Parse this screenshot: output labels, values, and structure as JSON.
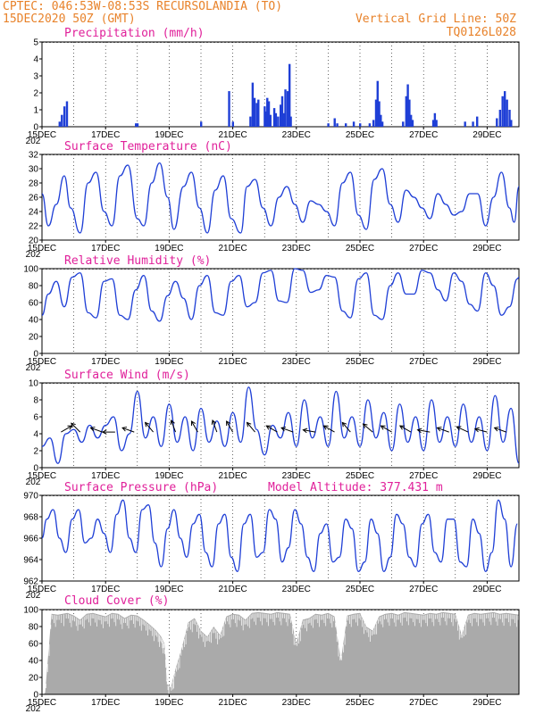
{
  "header": {
    "line1": "CPTEC:   046:53W-08:53S   RECURSOLANDIA (TO)",
    "line2": "15DEC2020 50Z (GMT)",
    "grid_note": "Vertical Grid Line: 50Z",
    "code": "TQ0126L028"
  },
  "colors": {
    "header": "#e8822a",
    "panel_title": "#e0209a",
    "series": "#1f3fd6",
    "cloud": "#aaaaaa"
  },
  "x_axis": {
    "labels": [
      "15DEC",
      "17DEC",
      "19DEC",
      "21DEC",
      "23DEC",
      "25DEC",
      "27DEC",
      "29DEC"
    ],
    "year_fragment": "202"
  },
  "chart_data": [
    {
      "type": "bar",
      "title": "Precipitation (mm/h)",
      "ylim": [
        0,
        5
      ],
      "yticks": [
        "0",
        "1",
        "2",
        "3",
        "4",
        "5"
      ],
      "x_range_days": [
        15,
        30
      ],
      "bars": [
        [
          15.55,
          0.3
        ],
        [
          15.62,
          0.7
        ],
        [
          15.7,
          1.2
        ],
        [
          15.78,
          1.5
        ],
        [
          17.95,
          0.2
        ],
        [
          18.0,
          0.2
        ],
        [
          20.0,
          0.3
        ],
        [
          20.88,
          2.1
        ],
        [
          21.0,
          0.3
        ],
        [
          21.55,
          0.6
        ],
        [
          21.62,
          2.6
        ],
        [
          21.68,
          1.7
        ],
        [
          21.75,
          1.4
        ],
        [
          21.8,
          1.6
        ],
        [
          22.0,
          1.2
        ],
        [
          22.05,
          0.9
        ],
        [
          22.08,
          1.7
        ],
        [
          22.13,
          1.5
        ],
        [
          22.18,
          0.7
        ],
        [
          22.3,
          1.1
        ],
        [
          22.35,
          0.8
        ],
        [
          22.42,
          0.6
        ],
        [
          22.5,
          1.3
        ],
        [
          22.55,
          1.8
        ],
        [
          22.6,
          0.8
        ],
        [
          22.65,
          2.2
        ],
        [
          22.72,
          2.1
        ],
        [
          22.78,
          3.7
        ],
        [
          22.82,
          0.6
        ],
        [
          24.0,
          0.2
        ],
        [
          24.2,
          0.5
        ],
        [
          24.28,
          0.2
        ],
        [
          24.55,
          0.2
        ],
        [
          24.8,
          0.3
        ],
        [
          25.0,
          0.2
        ],
        [
          25.3,
          0.2
        ],
        [
          25.42,
          0.4
        ],
        [
          25.5,
          1.6
        ],
        [
          25.55,
          2.7
        ],
        [
          25.6,
          1.5
        ],
        [
          25.65,
          0.7
        ],
        [
          25.7,
          0.3
        ],
        [
          26.35,
          0.3
        ],
        [
          26.45,
          1.8
        ],
        [
          26.5,
          2.5
        ],
        [
          26.55,
          1.6
        ],
        [
          26.6,
          0.7
        ],
        [
          26.65,
          0.4
        ],
        [
          27.3,
          0.4
        ],
        [
          27.35,
          0.8
        ],
        [
          27.4,
          0.4
        ],
        [
          28.3,
          0.3
        ],
        [
          28.55,
          0.3
        ],
        [
          28.68,
          0.6
        ],
        [
          29.3,
          0.5
        ],
        [
          29.4,
          1.0
        ],
        [
          29.48,
          1.8
        ],
        [
          29.55,
          2.1
        ],
        [
          29.62,
          1.6
        ],
        [
          29.7,
          1.0
        ],
        [
          29.75,
          0.4
        ]
      ]
    },
    {
      "type": "line",
      "title": "Surface Temperature (nC)",
      "ylim": [
        20,
        32
      ],
      "yticks": [
        "20",
        "22",
        "24",
        "26",
        "28",
        "30",
        "32"
      ],
      "x_range_days": [
        15,
        30
      ],
      "x": [
        15.0,
        15.2,
        15.45,
        15.7,
        15.9,
        16.2,
        16.45,
        16.7,
        16.95,
        17.2,
        17.45,
        17.7,
        18.0,
        18.2,
        18.45,
        18.7,
        18.95,
        19.15,
        19.45,
        19.7,
        19.95,
        20.2,
        20.45,
        20.7,
        20.95,
        21.25,
        21.45,
        21.7,
        21.95,
        22.2,
        22.45,
        22.7,
        22.95,
        23.2,
        23.45,
        23.7,
        23.95,
        24.2,
        24.45,
        24.7,
        24.95,
        25.2,
        25.45,
        25.7,
        25.95,
        26.2,
        26.45,
        26.7,
        26.95,
        27.2,
        27.45,
        27.7,
        27.95,
        28.2,
        28.45,
        28.7,
        28.95,
        29.2,
        29.45,
        29.7,
        29.85,
        30.0
      ],
      "y": [
        26.5,
        22.0,
        25.0,
        29.0,
        24.5,
        21.0,
        28.0,
        29.5,
        24.0,
        22.0,
        29.0,
        30.5,
        23.0,
        22.0,
        28.0,
        30.8,
        26.0,
        21.5,
        27.5,
        29.5,
        24.5,
        21.0,
        27.0,
        29.0,
        23.0,
        21.0,
        27.5,
        28.5,
        24.5,
        22.0,
        26.0,
        27.5,
        25.0,
        22.5,
        25.5,
        25.0,
        24.0,
        22.0,
        28.0,
        29.5,
        23.5,
        21.5,
        28.5,
        30.0,
        25.0,
        22.5,
        27.0,
        26.0,
        24.5,
        23.0,
        26.5,
        25.0,
        23.5,
        24.0,
        26.5,
        26.5,
        22.0,
        26.0,
        29.5,
        24.5,
        22.5,
        27.5
      ]
    },
    {
      "type": "line",
      "title": "Relative Humidity (%)",
      "ylim": [
        0,
        100
      ],
      "yticks": [
        "0",
        "20",
        "40",
        "60",
        "80",
        "100"
      ],
      "x_range_days": [
        15,
        30
      ],
      "x": [
        15.0,
        15.2,
        15.45,
        15.7,
        15.95,
        16.2,
        16.45,
        16.7,
        16.95,
        17.2,
        17.45,
        17.7,
        17.95,
        18.2,
        18.45,
        18.7,
        18.95,
        19.2,
        19.45,
        19.7,
        19.95,
        20.2,
        20.45,
        20.7,
        20.95,
        21.2,
        21.45,
        21.7,
        21.95,
        22.2,
        22.45,
        22.7,
        22.95,
        23.2,
        23.45,
        23.7,
        23.95,
        24.2,
        24.45,
        24.7,
        24.95,
        25.2,
        25.45,
        25.7,
        25.95,
        26.2,
        26.45,
        26.7,
        26.95,
        27.2,
        27.45,
        27.7,
        27.95,
        28.2,
        28.45,
        28.7,
        28.95,
        29.2,
        29.45,
        29.7,
        29.95,
        30.0
      ],
      "y": [
        45,
        70,
        85,
        55,
        90,
        95,
        48,
        42,
        85,
        88,
        45,
        40,
        75,
        92,
        50,
        38,
        68,
        85,
        65,
        40,
        80,
        92,
        48,
        45,
        85,
        92,
        55,
        60,
        95,
        98,
        62,
        60,
        100,
        98,
        72,
        75,
        92,
        90,
        50,
        42,
        88,
        95,
        45,
        40,
        80,
        95,
        70,
        70,
        98,
        95,
        75,
        62,
        95,
        85,
        58,
        50,
        95,
        80,
        45,
        55,
        88,
        90
      ]
    },
    {
      "type": "line",
      "title": "Surface Wind (m/s)",
      "ylim": [
        0,
        10
      ],
      "yticks": [
        "0",
        "2",
        "4",
        "6",
        "8",
        "10"
      ],
      "x_range_days": [
        15,
        30
      ],
      "x": [
        15.0,
        15.25,
        15.5,
        15.75,
        16.0,
        16.25,
        16.5,
        16.75,
        17.0,
        17.25,
        17.5,
        17.75,
        18.0,
        18.25,
        18.5,
        18.75,
        19.0,
        19.25,
        19.5,
        19.75,
        20.0,
        20.25,
        20.5,
        20.75,
        21.0,
        21.25,
        21.5,
        21.75,
        22.0,
        22.25,
        22.5,
        22.75,
        23.0,
        23.25,
        23.5,
        23.75,
        24.0,
        24.25,
        24.5,
        24.75,
        25.0,
        25.25,
        25.5,
        25.75,
        26.0,
        26.25,
        26.5,
        26.75,
        27.0,
        27.25,
        27.5,
        27.75,
        28.0,
        28.25,
        28.5,
        28.75,
        29.0,
        29.25,
        29.5,
        29.75,
        30.0
      ],
      "y": [
        2.5,
        3.5,
        0.5,
        4.0,
        4.5,
        3.0,
        5.0,
        3.5,
        5.0,
        6.0,
        2.0,
        4.0,
        9.0,
        3.5,
        6.0,
        2.5,
        7.5,
        3.0,
        6.0,
        2.0,
        7.0,
        3.0,
        5.5,
        2.5,
        6.5,
        3.0,
        9.5,
        4.5,
        1.5,
        5.0,
        3.5,
        6.5,
        2.5,
        8.0,
        3.5,
        6.0,
        2.5,
        9.0,
        3.5,
        6.0,
        2.5,
        8.0,
        3.5,
        6.5,
        2.0,
        7.5,
        3.0,
        6.0,
        2.0,
        8.0,
        3.0,
        6.0,
        2.5,
        7.5,
        3.0,
        6.0,
        2.0,
        8.5,
        3.0,
        7.0,
        0.5
      ],
      "arrows": [
        {
          "day": 15.6,
          "dir": -30
        },
        {
          "day": 16.2,
          "dir": 225
        },
        {
          "day": 16.9,
          "dir": 200
        },
        {
          "day": 17.3,
          "dir": 180
        },
        {
          "day": 17.9,
          "dir": 200
        },
        {
          "day": 18.5,
          "dir": 230
        },
        {
          "day": 19.2,
          "dir": 250
        },
        {
          "day": 19.9,
          "dir": 240
        },
        {
          "day": 20.5,
          "dir": 250
        },
        {
          "day": 21.0,
          "dir": 240
        },
        {
          "day": 21.7,
          "dir": 230
        },
        {
          "day": 22.4,
          "dir": 210
        },
        {
          "day": 22.9,
          "dir": 200
        },
        {
          "day": 23.6,
          "dir": 190
        },
        {
          "day": 24.2,
          "dir": 210
        },
        {
          "day": 24.7,
          "dir": 230
        },
        {
          "day": 25.4,
          "dir": 220
        },
        {
          "day": 26.0,
          "dir": 210
        },
        {
          "day": 26.6,
          "dir": 210
        },
        {
          "day": 27.2,
          "dir": 190
        },
        {
          "day": 27.8,
          "dir": 200
        },
        {
          "day": 28.4,
          "dir": 205
        },
        {
          "day": 29.0,
          "dir": 195
        },
        {
          "day": 29.6,
          "dir": 200
        }
      ]
    },
    {
      "type": "line",
      "title": "Surface Pressure (hPa)",
      "note": "Model Altitude: 377.431  m",
      "ylim": [
        962,
        971
      ],
      "yticks": [
        "962",
        "964",
        "966",
        "968",
        "970"
      ],
      "x_range_days": [
        15,
        30
      ],
      "x": [
        15.0,
        15.15,
        15.35,
        15.55,
        15.75,
        15.95,
        16.15,
        16.35,
        16.55,
        16.75,
        16.95,
        17.15,
        17.35,
        17.55,
        17.75,
        17.95,
        18.15,
        18.35,
        18.55,
        18.75,
        18.95,
        19.15,
        19.35,
        19.55,
        19.75,
        19.95,
        20.15,
        20.35,
        20.55,
        20.75,
        20.95,
        21.15,
        21.35,
        21.55,
        21.75,
        21.95,
        22.15,
        22.35,
        22.55,
        22.75,
        22.95,
        23.15,
        23.35,
        23.55,
        23.75,
        23.95,
        24.15,
        24.35,
        24.55,
        24.75,
        24.95,
        25.15,
        25.35,
        25.55,
        25.75,
        25.95,
        26.15,
        26.35,
        26.55,
        26.75,
        26.95,
        27.15,
        27.35,
        27.55,
        27.75,
        27.95,
        28.15,
        28.35,
        28.55,
        28.75,
        28.95,
        29.15,
        29.35,
        29.55,
        29.75,
        29.95
      ],
      "y": [
        966.5,
        968.5,
        969.5,
        966.5,
        965.0,
        968.5,
        969.5,
        966.0,
        966.5,
        968.5,
        967.0,
        965.0,
        969.0,
        970.5,
        966.5,
        965.0,
        969.5,
        970.0,
        966.0,
        963.5,
        967.5,
        969.5,
        966.5,
        964.5,
        968.0,
        969.0,
        965.0,
        963.5,
        968.0,
        969.0,
        964.5,
        963.0,
        968.0,
        969.0,
        964.5,
        965.0,
        969.5,
        968.5,
        964.0,
        965.5,
        969.5,
        968.0,
        964.5,
        963.0,
        967.0,
        968.0,
        964.0,
        964.5,
        968.5,
        967.5,
        963.0,
        964.0,
        968.5,
        967.0,
        963.0,
        964.5,
        969.0,
        968.0,
        964.5,
        963.5,
        968.0,
        969.0,
        965.0,
        964.0,
        968.5,
        968.5,
        964.0,
        963.5,
        968.5,
        967.0,
        963.0,
        965.0,
        970.5,
        968.5,
        963.5,
        968.0
      ]
    },
    {
      "type": "area",
      "title": "Cloud Cover (%)",
      "ylim": [
        0,
        100
      ],
      "yticks": [
        "0",
        "20",
        "40",
        "60",
        "80",
        "100"
      ],
      "x_range_days": [
        15,
        30
      ],
      "x": [
        15.0,
        15.05,
        15.1,
        15.3,
        15.5,
        15.8,
        16.0,
        16.2,
        16.4,
        16.6,
        16.8,
        17.0,
        17.2,
        17.4,
        17.6,
        17.8,
        18.0,
        18.2,
        18.4,
        18.6,
        18.75,
        18.85,
        18.95,
        19.05,
        19.2,
        19.4,
        19.6,
        19.8,
        20.0,
        20.2,
        20.4,
        20.6,
        20.8,
        21.0,
        21.2,
        21.4,
        21.6,
        21.8,
        22.0,
        22.2,
        22.4,
        22.6,
        22.8,
        23.0,
        23.2,
        23.4,
        23.6,
        23.8,
        24.0,
        24.2,
        24.4,
        24.6,
        24.8,
        25.0,
        25.2,
        25.4,
        25.6,
        25.8,
        26.0,
        26.2,
        26.4,
        26.6,
        26.8,
        27.0,
        27.2,
        27.4,
        27.6,
        27.8,
        28.0,
        28.2,
        28.4,
        28.6,
        28.8,
        29.0,
        29.2,
        29.4,
        29.6,
        29.8,
        30.0
      ],
      "y": [
        0,
        0,
        2,
        95,
        94,
        96,
        93,
        88,
        95,
        96,
        94,
        92,
        96,
        95,
        90,
        94,
        93,
        88,
        82,
        75,
        68,
        60,
        12,
        8,
        30,
        55,
        85,
        90,
        75,
        68,
        80,
        70,
        92,
        95,
        94,
        88,
        96,
        97,
        96,
        95,
        97,
        96,
        95,
        60,
        88,
        90,
        95,
        94,
        96,
        92,
        40,
        93,
        95,
        96,
        80,
        75,
        92,
        95,
        96,
        94,
        97,
        96,
        95,
        94,
        96,
        95,
        97,
        96,
        95,
        70,
        94,
        96,
        95,
        96,
        97,
        95,
        96,
        95,
        94
      ]
    }
  ]
}
